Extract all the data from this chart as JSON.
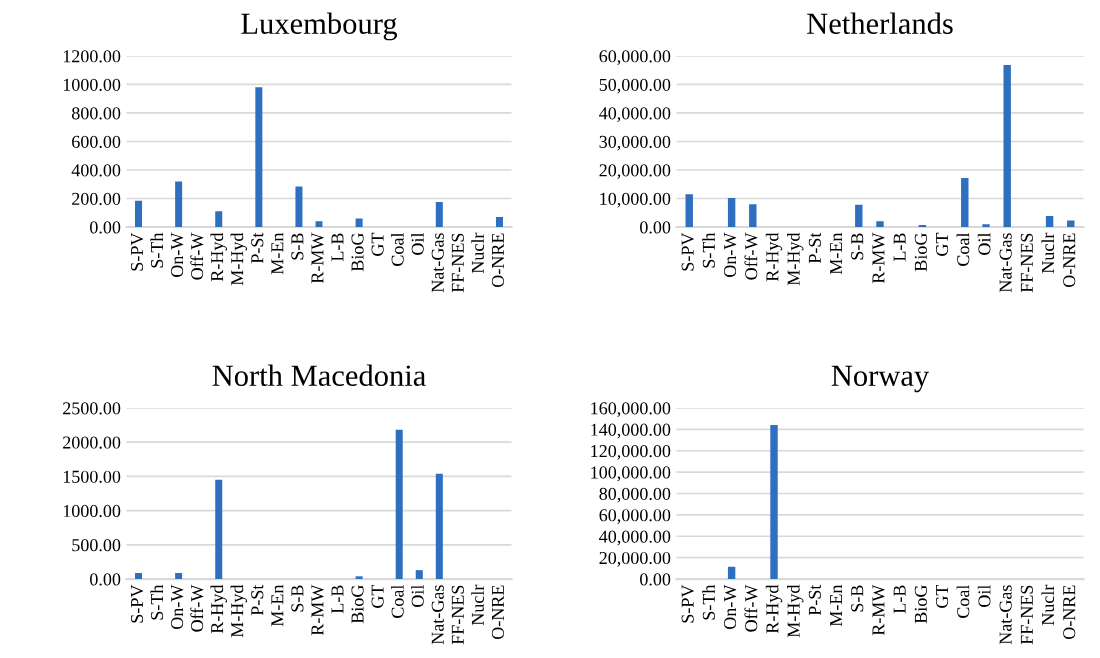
{
  "chart_data": [
    {
      "type": "bar",
      "title": "Luxembourg",
      "categories": [
        "S-PV",
        "S-Th",
        "On-W",
        "Off-W",
        "R-Hyd",
        "M-Hyd",
        "P-St",
        "M-En",
        "S-B",
        "R-MW",
        "L-B",
        "BioG",
        "GT",
        "Coal",
        "Oil",
        "Nat-Gas",
        "FF-NES",
        "Nuclr",
        "O-NRE"
      ],
      "color": "#2e6fbf",
      "values": [
        185,
        0,
        320,
        0,
        110,
        0,
        980,
        0,
        285,
        40,
        0,
        60,
        0,
        0,
        0,
        175,
        0,
        0,
        70
      ],
      "ylim": [
        0,
        1200
      ],
      "yticks": [
        {
          "value": 0,
          "label": "0.00"
        },
        {
          "value": 200,
          "label": "200.00"
        },
        {
          "value": 400,
          "label": "400.00"
        },
        {
          "value": 600,
          "label": "600.00"
        },
        {
          "value": 800,
          "label": "800.00"
        },
        {
          "value": 1000,
          "label": "1000.00"
        },
        {
          "value": 1200,
          "label": "1200.00"
        }
      ],
      "grid": "y"
    },
    {
      "type": "bar",
      "title": "Netherlands",
      "categories": [
        "S-PV",
        "S-Th",
        "On-W",
        "Off-W",
        "R-Hyd",
        "M-Hyd",
        "P-St",
        "M-En",
        "S-B",
        "R-MW",
        "L-B",
        "BioG",
        "GT",
        "Coal",
        "Oil",
        "Nat-Gas",
        "FF-NES",
        "Nuclr",
        "O-NRE"
      ],
      "color": "#2e6fbf",
      "values": [
        11500,
        0,
        10200,
        8000,
        0,
        0,
        0,
        0,
        7800,
        2000,
        0,
        700,
        0,
        17200,
        1000,
        56800,
        0,
        3900,
        2300
      ],
      "ylim": [
        0,
        60000
      ],
      "yticks": [
        {
          "value": 0,
          "label": "0.00"
        },
        {
          "value": 10000,
          "label": "10,000.00"
        },
        {
          "value": 20000,
          "label": "20,000.00"
        },
        {
          "value": 30000,
          "label": "30,000.00"
        },
        {
          "value": 40000,
          "label": "40,000.00"
        },
        {
          "value": 50000,
          "label": "50,000.00"
        },
        {
          "value": 60000,
          "label": "60,000.00"
        }
      ],
      "grid": "y"
    },
    {
      "type": "bar",
      "title": "North Macedonia",
      "categories": [
        "S-PV",
        "S-Th",
        "On-W",
        "Off-W",
        "R-Hyd",
        "M-Hyd",
        "P-St",
        "M-En",
        "S-B",
        "R-MW",
        "L-B",
        "BioG",
        "GT",
        "Coal",
        "Oil",
        "Nat-Gas",
        "FF-NES",
        "Nuclr",
        "O-NRE"
      ],
      "color": "#2e6fbf",
      "values": [
        90,
        0,
        90,
        0,
        1450,
        0,
        0,
        0,
        0,
        0,
        0,
        40,
        0,
        2180,
        130,
        1540,
        0,
        0,
        0
      ],
      "ylim": [
        0,
        2500
      ],
      "yticks": [
        {
          "value": 0,
          "label": "0.00"
        },
        {
          "value": 500,
          "label": "500.00"
        },
        {
          "value": 1000,
          "label": "1000.00"
        },
        {
          "value": 1500,
          "label": "1500.00"
        },
        {
          "value": 2000,
          "label": "2000.00"
        },
        {
          "value": 2500,
          "label": "2500.00"
        }
      ],
      "grid": "y"
    },
    {
      "type": "bar",
      "title": "Norway",
      "categories": [
        "S-PV",
        "S-Th",
        "On-W",
        "Off-W",
        "R-Hyd",
        "M-Hyd",
        "P-St",
        "M-En",
        "S-B",
        "R-MW",
        "L-B",
        "BioG",
        "GT",
        "Coal",
        "Oil",
        "Nat-Gas",
        "FF-NES",
        "Nuclr",
        "O-NRE"
      ],
      "color": "#2e6fbf",
      "values": [
        0,
        0,
        11500,
        0,
        144000,
        0,
        0,
        0,
        0,
        0,
        0,
        0,
        0,
        0,
        0,
        0,
        0,
        0,
        0
      ],
      "ylim": [
        0,
        160000
      ],
      "yticks": [
        {
          "value": 0,
          "label": "0.00"
        },
        {
          "value": 20000,
          "label": "20,000.00"
        },
        {
          "value": 40000,
          "label": "40,000.00"
        },
        {
          "value": 60000,
          "label": "60,000.00"
        },
        {
          "value": 80000,
          "label": "80,000.00"
        },
        {
          "value": 100000,
          "label": "100,000.00"
        },
        {
          "value": 120000,
          "label": "120,000.00"
        },
        {
          "value": 140000,
          "label": "140,000.00"
        },
        {
          "value": 160000,
          "label": "160,000.00"
        }
      ],
      "grid": "y"
    }
  ]
}
